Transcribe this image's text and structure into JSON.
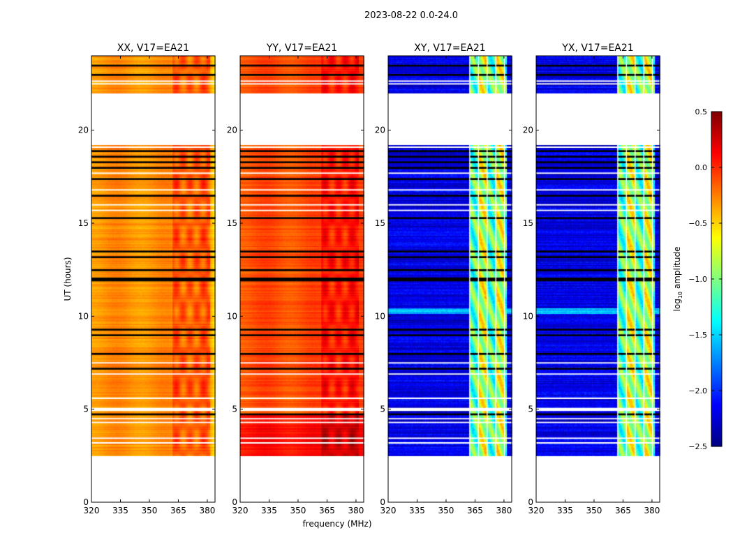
{
  "chart_data": {
    "type": "heatmap",
    "suptitle": "2023-08-22 0.0-24.0",
    "xlabel": "frequency (MHz)",
    "ylabel": "UT (hours)",
    "xlim": [
      320,
      384
    ],
    "ylim": [
      0,
      24
    ],
    "xticks": [
      "320",
      "335",
      "350",
      "365",
      "380"
    ],
    "yticks": [
      "0",
      "5",
      "10",
      "15",
      "20"
    ],
    "panels": [
      {
        "title": "XX, V17=EA21",
        "kind": "parallel",
        "base": -0.3,
        "edge_yellow": true
      },
      {
        "title": "YY, V17=EA21",
        "kind": "parallel",
        "base": -0.1,
        "edge_yellow": false
      },
      {
        "title": "XY, V17=EA21",
        "kind": "cross",
        "base": -2.2
      },
      {
        "title": "YX, V17=EA21",
        "kind": "cross",
        "base": -2.2
      }
    ],
    "data_time_ranges": [
      [
        2.5,
        19.2
      ],
      [
        22.0,
        24.0
      ]
    ],
    "flagged_rows_black": [
      4.75,
      7.2,
      8.0,
      9.0,
      9.3,
      11.95,
      12.05,
      12.5,
      13.2,
      13.5,
      15.3,
      16.5,
      17.4,
      18.0,
      18.3,
      18.6,
      18.9,
      23.0,
      23.5
    ],
    "flagged_rows_white": [
      3.2,
      3.45,
      4.3,
      4.5,
      5.6,
      6.9,
      7.5,
      15.7,
      16.0,
      16.8,
      17.7,
      19.1,
      22.5,
      22.65
    ],
    "rfi_band_mhz": [
      362,
      381
    ],
    "colorbar": {
      "label": "log10 amplitude",
      "label_main": "log",
      "label_sub": "10",
      "label_rest": " amplitude",
      "range": [
        -2.5,
        0.5
      ],
      "ticks": [
        "0.5",
        "0.0",
        "−0.5",
        "−1.0",
        "−1.5",
        "−2.0",
        "−2.5"
      ],
      "colormap": "jet"
    }
  }
}
